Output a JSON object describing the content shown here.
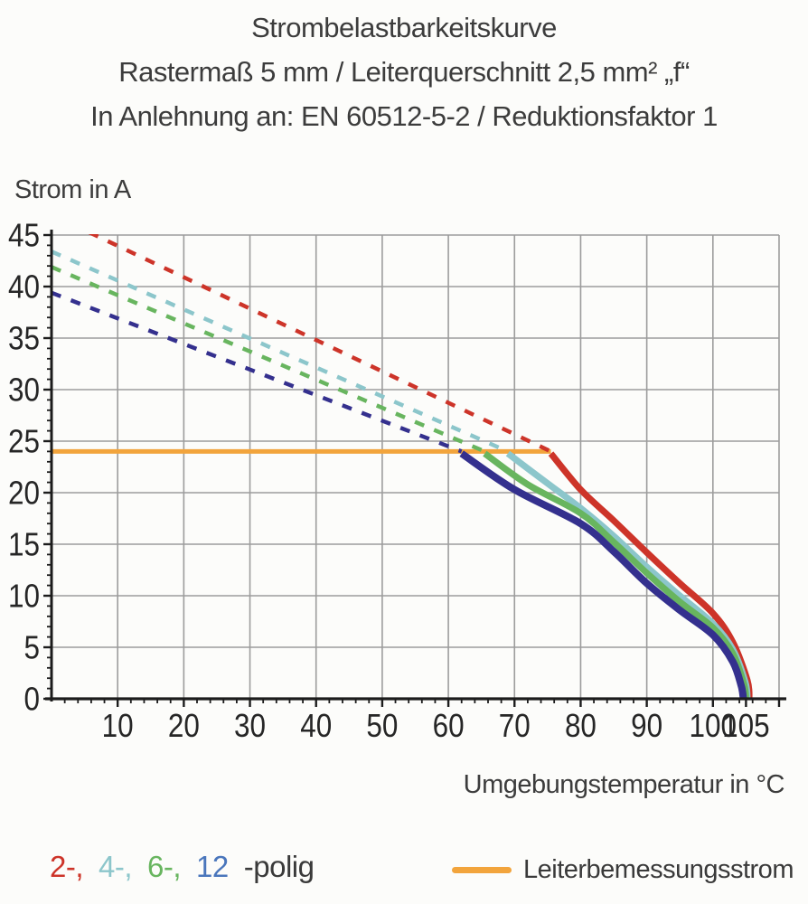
{
  "title": {
    "line1": "Strombelastbarkeitskurve",
    "line2": "Rastermaß 5 mm / Leiterquerschnitt 2,5 mm² „f“",
    "line3": "In Anlehnung an: EN 60512-5-2 / Reduktionsfaktor 1"
  },
  "axes": {
    "y_label": "Strom in A",
    "x_label": "Umgebungstemperatur in °C"
  },
  "legend": {
    "pole_items": [
      {
        "text": "2-,",
        "color": "#cd3429"
      },
      {
        "text": "4-,",
        "color": "#8cc6cb"
      },
      {
        "text": "6-,",
        "color": "#68b55f"
      },
      {
        "text": "12",
        "color": "#4a76bc"
      }
    ],
    "pole_suffix": "-polig",
    "rated_label": "Leiterbemessungsstrom",
    "rated_color": "#f2a43c"
  },
  "colors": {
    "background": "#fcfcfa",
    "grid": "#9c9c9c",
    "axis": "#1c1c1c",
    "tick_text": "#262626",
    "title_text": "#3c3c3c",
    "series_red": "#cd3429",
    "series_cyan": "#8cc6cb",
    "series_green": "#68b55f",
    "series_navy": "#34308e",
    "rated_orange": "#f2a43c"
  },
  "chart_data": {
    "type": "line",
    "title": "Strombelastbarkeitskurve Rastermaß 5 mm / Leiterquerschnitt 2,5 mm² „f“ / In Anlehnung an: EN 60512-5-2 / Reduktionsfaktor 1",
    "xlabel": "Umgebungstemperatur in °C",
    "ylabel": "Strom in A",
    "xlim": [
      0,
      110
    ],
    "ylim": [
      0,
      45
    ],
    "x_major_ticks": [
      10,
      20,
      30,
      40,
      50,
      60,
      70,
      80,
      90,
      100,
      105
    ],
    "y_major_ticks": [
      45,
      40,
      35,
      30,
      25,
      20,
      15,
      10,
      5,
      0
    ],
    "x_minor_step": 2,
    "y_minor_step": 1,
    "grid": true,
    "legend_position": "bottom",
    "rated_current_A": 24,
    "rated_line": {
      "name": "Leiterbemessungsstrom",
      "color": "#f2a43c",
      "points": [
        [
          0,
          24
        ],
        [
          75.5,
          24
        ]
      ]
    },
    "series": [
      {
        "name": "2-polig",
        "color": "#cd3429",
        "dashed_derating": [
          [
            0,
            47.0
          ],
          [
            75.5,
            24
          ]
        ],
        "solid_limit": [
          [
            75.5,
            23.8
          ],
          [
            80,
            20.3
          ],
          [
            85,
            17.3
          ],
          [
            90,
            14.2
          ],
          [
            95,
            11.2
          ],
          [
            100,
            8.3
          ],
          [
            103,
            5.5
          ],
          [
            105.2,
            1.8
          ],
          [
            105.5,
            0
          ]
        ]
      },
      {
        "name": "4-polig",
        "color": "#8cc6cb",
        "dashed_derating": [
          [
            0,
            43.4
          ],
          [
            69,
            24
          ]
        ],
        "solid_limit": [
          [
            69,
            23.8
          ],
          [
            75,
            20.9
          ],
          [
            80,
            18.5
          ],
          [
            85,
            15.8
          ],
          [
            90,
            12.8
          ],
          [
            95,
            10.0
          ],
          [
            100,
            7.3
          ],
          [
            103,
            4.8
          ],
          [
            104.9,
            1.6
          ],
          [
            105.2,
            0
          ]
        ]
      },
      {
        "name": "6-polig",
        "color": "#68b55f",
        "dashed_derating": [
          [
            0,
            41.9
          ],
          [
            65.5,
            24
          ]
        ],
        "solid_limit": [
          [
            65.5,
            23.8
          ],
          [
            72,
            20.8
          ],
          [
            80,
            18.0
          ],
          [
            85,
            15.2
          ],
          [
            90,
            12.2
          ],
          [
            95,
            9.4
          ],
          [
            100,
            6.9
          ],
          [
            103,
            4.4
          ],
          [
            104.7,
            1.4
          ],
          [
            105,
            0
          ]
        ]
      },
      {
        "name": "12-polig",
        "color": "#34308e",
        "dashed_derating": [
          [
            0,
            39.4
          ],
          [
            62,
            24
          ]
        ],
        "solid_limit": [
          [
            62,
            23.8
          ],
          [
            70,
            20.3
          ],
          [
            80,
            17.0
          ],
          [
            85,
            14.3
          ],
          [
            90,
            11.2
          ],
          [
            95,
            8.6
          ],
          [
            100,
            6.2
          ],
          [
            103,
            3.6
          ],
          [
            104.3,
            1.2
          ],
          [
            104.6,
            0
          ]
        ]
      }
    ]
  }
}
